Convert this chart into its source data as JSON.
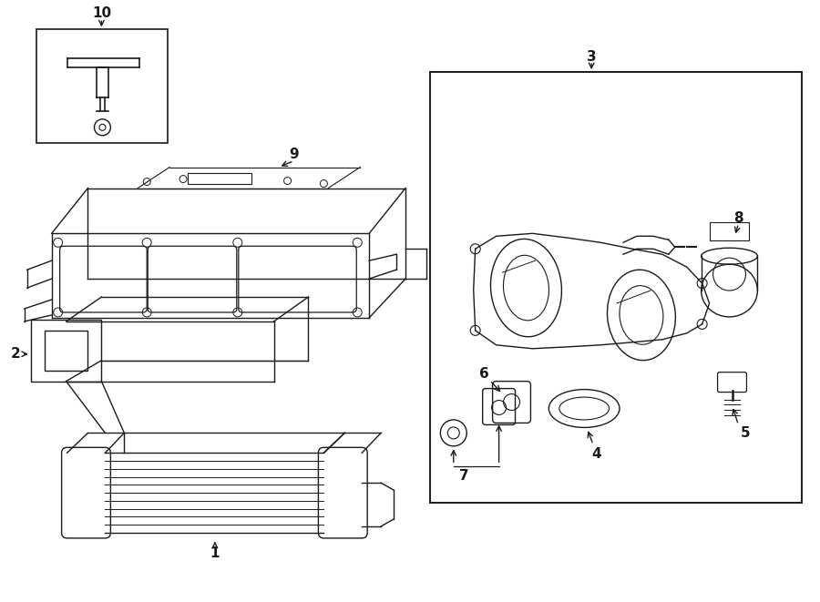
{
  "bg_color": "#ffffff",
  "line_color": "#1a1a1a",
  "fig_width": 9.0,
  "fig_height": 6.61,
  "lw": 1.0
}
